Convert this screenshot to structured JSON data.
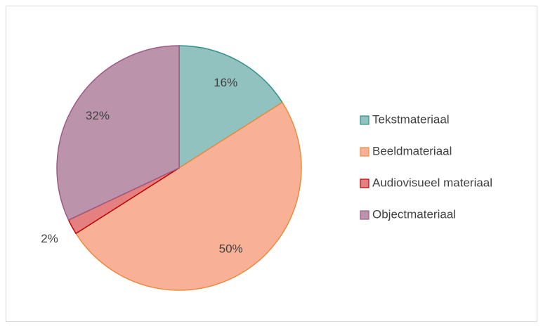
{
  "chart_data": {
    "type": "pie",
    "categories": [
      "Tekstmateriaal",
      "Beeldmateriaal",
      "Audiovisueel materiaal",
      "Objectmateriaal"
    ],
    "values": [
      16,
      50,
      2,
      32
    ],
    "value_labels": [
      "16%",
      "50%",
      "2%",
      "32%"
    ],
    "colors": [
      "#92c2bf",
      "#f8b196",
      "#e58080",
      "#bb94ab"
    ],
    "edge_colors": [
      "#2f8f8a",
      "#ee8a3c",
      "#c00000",
      "#9c5b83"
    ],
    "legend": "right"
  }
}
